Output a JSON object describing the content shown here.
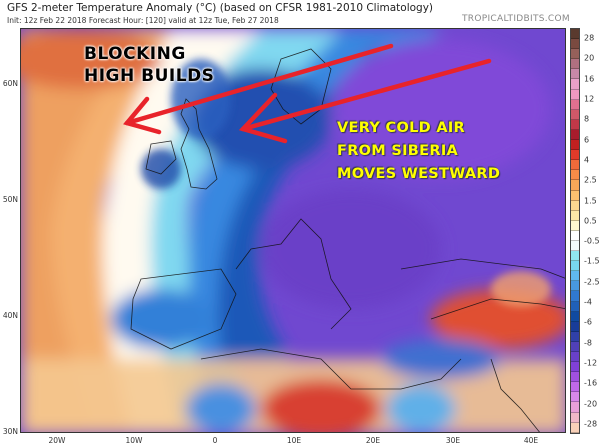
{
  "header": {
    "title": "GFS 2-meter Temperature Anomaly (°C) (based on CFSR 1981-2010 Climatology)",
    "subtitle": "Init: 12z Feb 22 2018   Forecast Hour: [120]   valid at 12z Tue, Feb 27 2018",
    "brand": "TROPICALTIDBITS.COM"
  },
  "map": {
    "lat_labels": [
      "60N",
      "50N",
      "40N",
      "30N"
    ],
    "lon_labels": [
      "20W",
      "10W",
      "0",
      "10E",
      "20E",
      "30E",
      "40E"
    ],
    "annotations": {
      "blocking": [
        "BLOCKING",
        "HIGH BUILDS"
      ],
      "cold_air": [
        "VERY COLD AIR",
        "FROM SIBERIA",
        "MOVES WESTWARD"
      ]
    },
    "arrow_color": "#e8232a"
  },
  "colorbar": {
    "labels": [
      "28",
      "20",
      "16",
      "12",
      "8",
      "6",
      "4",
      "2.5",
      "1.5",
      "0.5",
      "-0.5",
      "-1.5",
      "-2.5",
      "-4",
      "-6",
      "-8",
      "-12",
      "-16",
      "-20",
      "-28"
    ],
    "colors": [
      "#5a3a2e",
      "#7a4a40",
      "#95605a",
      "#b07080",
      "#c888a8",
      "#e8a0c8",
      "#f098c0",
      "#e07090",
      "#d05868",
      "#c03848",
      "#a81c2c",
      "#c02020",
      "#e03a2a",
      "#f06a3a",
      "#f88c48",
      "#f8a858",
      "#fcc070",
      "#fcd890",
      "#fce8a8",
      "#fff8d0",
      "#ffffff",
      "#f4fbfd",
      "#90e8f0",
      "#78d8f0",
      "#60b8f0",
      "#4898e0",
      "#3078d0",
      "#2060b8",
      "#104aa0",
      "#183c98",
      "#3040a8",
      "#5040b8",
      "#6840c8",
      "#8040d8",
      "#a050e0",
      "#c068e8",
      "#d888e8",
      "#e8a0d8",
      "#f0b8c8",
      "#f8d0b8"
    ]
  }
}
